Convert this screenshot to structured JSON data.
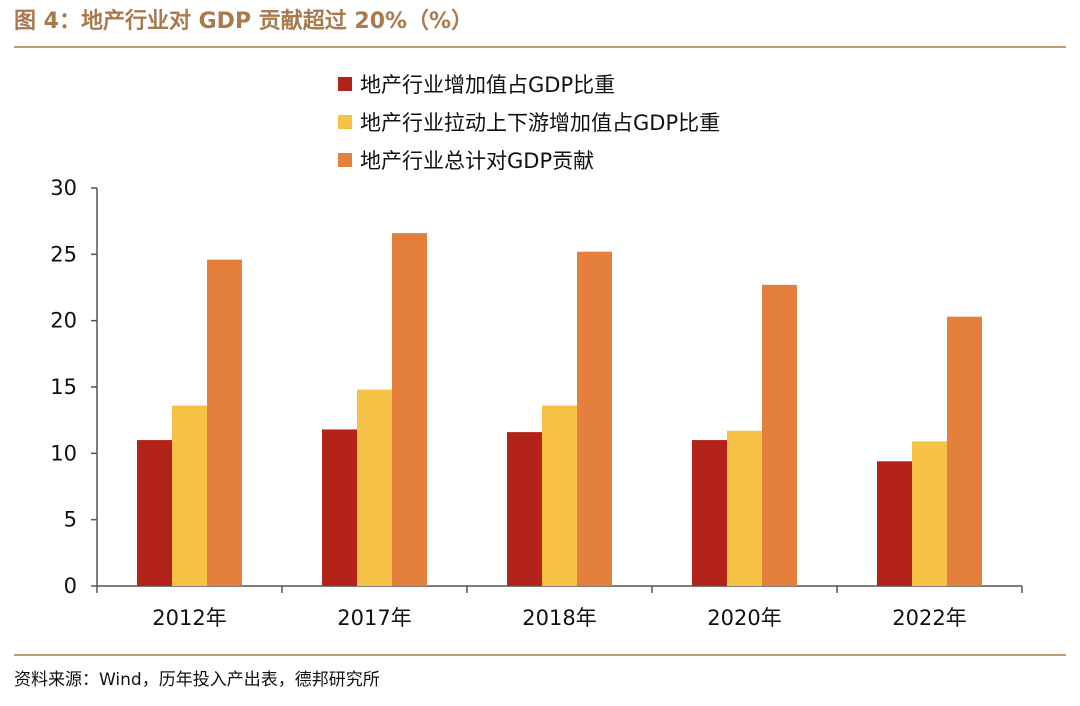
{
  "figure_title": "图 4：地产行业对 GDP 贡献超过 20%（%）",
  "source_text": "资料来源：Wind，历年投入产出表，德邦研究所",
  "colors": {
    "series_1": "#b3231a",
    "series_2": "#f5c146",
    "series_3": "#e57f3c",
    "title": "#a87a4e",
    "rule": "#c19a73"
  },
  "chart_data": {
    "type": "bar",
    "title": "",
    "xlabel": "",
    "ylabel": "",
    "ylim": [
      0,
      30
    ],
    "yticks": [
      "0",
      "5",
      "10",
      "15",
      "20",
      "25",
      "30"
    ],
    "categories": [
      "2012年",
      "2017年",
      "2018年",
      "2020年",
      "2022年"
    ],
    "series": [
      {
        "name": "地产行业增加值占GDP比重",
        "values": [
          11.0,
          11.8,
          11.6,
          11.0,
          9.4
        ]
      },
      {
        "name": "地产行业拉动上下游增加值占GDP比重",
        "values": [
          13.6,
          14.8,
          13.6,
          11.7,
          10.9
        ]
      },
      {
        "name": "地产行业总计对GDP贡献",
        "values": [
          24.6,
          26.6,
          25.2,
          22.7,
          20.3
        ]
      }
    ],
    "legend_position": "top-left",
    "grid": false
  }
}
